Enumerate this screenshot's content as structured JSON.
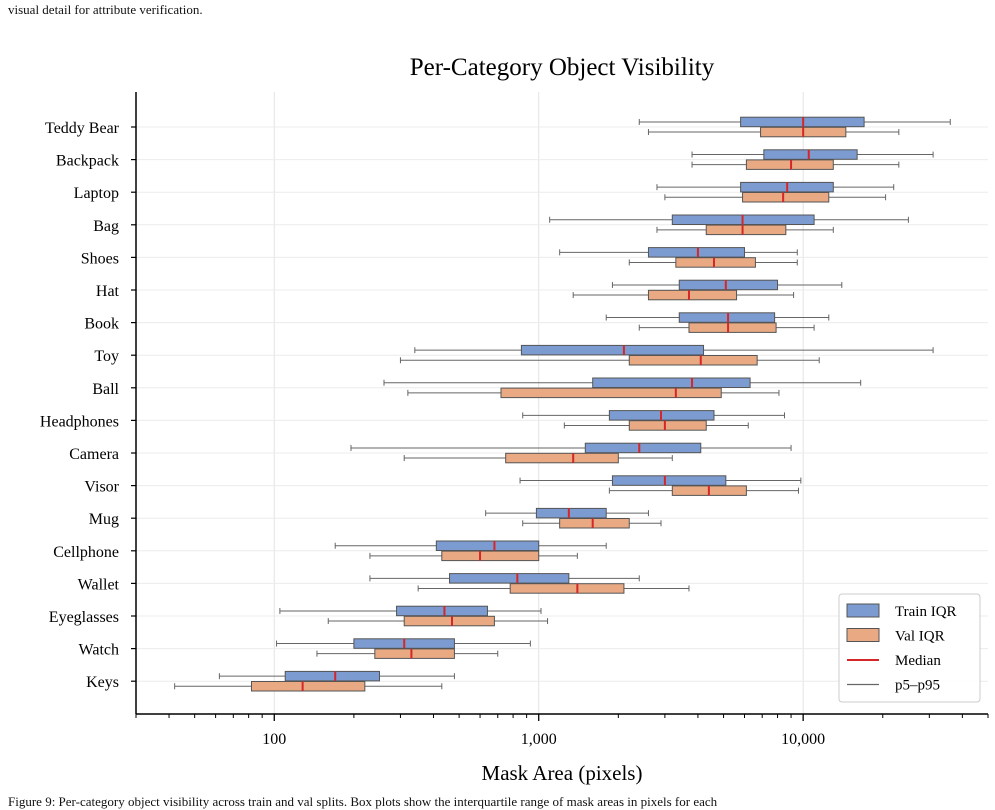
{
  "captions": {
    "top": "visual detail for attribute verification.",
    "bottom": "Figure 9: Per-category object visibility across train and val splits. Box plots show the interquartile range of mask areas in pixels for each"
  },
  "chart_data": {
    "type": "box",
    "title": "Per-Category Object Visibility",
    "xlabel": "Mask Area (pixels)",
    "ylabel": "",
    "xscale": "log",
    "xlim": [
      30,
      50000
    ],
    "xticks": [
      100,
      1000,
      10000
    ],
    "xtick_labels": [
      "100",
      "1,000",
      "10,000"
    ],
    "grid": "x-major",
    "legend_position": "bottom-right",
    "categories": [
      "Teddy Bear",
      "Backpack",
      "Laptop",
      "Bag",
      "Shoes",
      "Hat",
      "Book",
      "Toy",
      "Ball",
      "Headphones",
      "Camera",
      "Visor",
      "Mug",
      "Cellphone",
      "Wallet",
      "Eyeglasses",
      "Watch",
      "Keys"
    ],
    "series": [
      {
        "name": "Train IQR",
        "color": "#7b9bd1",
        "p5": [
          2400,
          3800,
          2800,
          1100,
          1200,
          1900,
          1800,
          340,
          260,
          870,
          195,
          850,
          630,
          170,
          230,
          105,
          102,
          62
        ],
        "q1": [
          5800,
          7100,
          5800,
          3200,
          2600,
          3400,
          3400,
          860,
          1600,
          1850,
          1500,
          1900,
          980,
          410,
          460,
          290,
          200,
          110
        ],
        "median": [
          10000,
          10500,
          8700,
          5900,
          4000,
          5100,
          5200,
          2100,
          3800,
          2900,
          2400,
          3000,
          1300,
          680,
          830,
          440,
          310,
          170
        ],
        "q3": [
          17000,
          16000,
          13000,
          11000,
          6000,
          8000,
          7800,
          4200,
          6300,
          4600,
          4100,
          5100,
          1800,
          1000,
          1300,
          640,
          480,
          250
        ],
        "p95": [
          36000,
          31000,
          22000,
          25000,
          9500,
          14000,
          12500,
          31000,
          16500,
          8500,
          9000,
          9800,
          2600,
          1800,
          2400,
          1020,
          930,
          480
        ]
      },
      {
        "name": "Val IQR",
        "color": "#e8a983",
        "p5": [
          2600,
          3800,
          3000,
          2800,
          2200,
          1350,
          2400,
          300,
          320,
          1250,
          310,
          1850,
          870,
          230,
          350,
          160,
          145,
          42
        ],
        "q1": [
          6900,
          6100,
          5900,
          4300,
          3300,
          2600,
          3700,
          2200,
          720,
          2200,
          750,
          3200,
          1200,
          430,
          780,
          310,
          240,
          82
        ],
        "median": [
          10000,
          9000,
          8400,
          5900,
          4600,
          3700,
          5200,
          4100,
          3300,
          3000,
          1350,
          4400,
          1600,
          600,
          1400,
          470,
          330,
          128
        ],
        "q3": [
          14500,
          13000,
          12500,
          8600,
          6600,
          5600,
          7900,
          6700,
          4900,
          4300,
          2000,
          6100,
          2200,
          1000,
          2100,
          680,
          480,
          220
        ],
        "p95": [
          23000,
          23000,
          20500,
          13000,
          9500,
          9200,
          11000,
          11500,
          8100,
          6200,
          3200,
          9600,
          2900,
          1400,
          3700,
          1080,
          700,
          430
        ]
      }
    ],
    "legend": [
      {
        "label": "Train IQR",
        "kind": "box",
        "color": "#7b9bd1"
      },
      {
        "label": "Val IQR",
        "kind": "box",
        "color": "#e8a983"
      },
      {
        "label": "Median",
        "kind": "line",
        "color": "#d62728"
      },
      {
        "label": "p5–p95",
        "kind": "line",
        "color": "#666666"
      }
    ],
    "median_color": "#d62728",
    "whisker_color": "#666666"
  }
}
